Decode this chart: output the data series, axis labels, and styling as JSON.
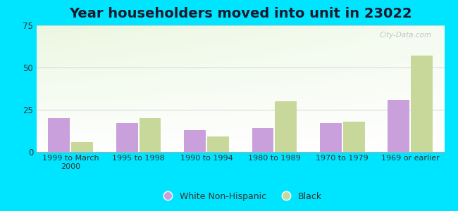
{
  "title": "Year householders moved into unit in 23022",
  "categories": [
    "1999 to March\n2000",
    "1995 to 1998",
    "1990 to 1994",
    "1980 to 1989",
    "1970 to 1979",
    "1969 or earlier"
  ],
  "white_values": [
    20,
    17,
    13,
    14,
    17,
    31
  ],
  "black_values": [
    6,
    20,
    9,
    30,
    18,
    57
  ],
  "white_color": "#c9a0dc",
  "black_color": "#c8d89a",
  "ylim": [
    0,
    75
  ],
  "yticks": [
    0,
    25,
    50,
    75
  ],
  "background_outer": "#00e5ff",
  "title_fontsize": 14,
  "title_color": "#1a1a2e",
  "watermark": "City-Data.com",
  "bar_width": 0.32,
  "grid_color": "#dddddd"
}
